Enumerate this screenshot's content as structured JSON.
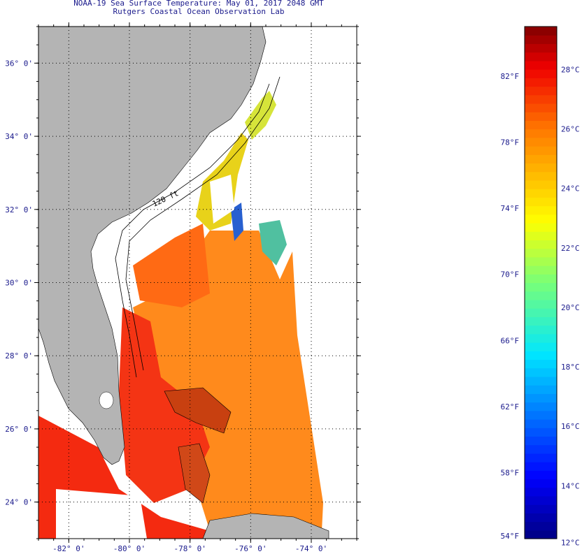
{
  "title": {
    "line1": "NOAA-19 Sea Surface Temperature:  May 01, 2017 2048 GMT",
    "line2": "Rutgers Coastal Ocean Observation Lab"
  },
  "map": {
    "lat_range": [
      23.0,
      37.0
    ],
    "lon_range": [
      -83.0,
      -72.5
    ],
    "lat_ticks": [
      {
        "value": 36,
        "label": "36° 0'"
      },
      {
        "value": 34,
        "label": "34° 0'"
      },
      {
        "value": 32,
        "label": "32° 0'"
      },
      {
        "value": 30,
        "label": "30° 0'"
      },
      {
        "value": 28,
        "label": "28° 0'"
      },
      {
        "value": 26,
        "label": "26° 0'"
      },
      {
        "value": 24,
        "label": "24° 0'"
      }
    ],
    "lon_ticks": [
      {
        "value": -82,
        "label": "-82° 0'"
      },
      {
        "value": -80,
        "label": "-80° 0'"
      },
      {
        "value": -78,
        "label": "-78° 0'"
      },
      {
        "value": -76,
        "label": "-76° 0'"
      },
      {
        "value": -74,
        "label": "-74° 0'"
      }
    ],
    "contour_label": "120 ft",
    "grid": "dotted",
    "land_color": "#b4b4b4"
  },
  "colorbar": {
    "min_f": 54,
    "max_f": 85,
    "f_ticks": [
      {
        "value": 82,
        "label": "82°F"
      },
      {
        "value": 78,
        "label": "78°F"
      },
      {
        "value": 74,
        "label": "74°F"
      },
      {
        "value": 70,
        "label": "70°F"
      },
      {
        "value": 66,
        "label": "66°F"
      },
      {
        "value": 62,
        "label": "62°F"
      },
      {
        "value": 58,
        "label": "58°F"
      },
      {
        "value": 54,
        "label": "54°F"
      }
    ],
    "c_ticks": [
      {
        "value": 28,
        "label": "28°C"
      },
      {
        "value": 26,
        "label": "26°C"
      },
      {
        "value": 24,
        "label": "24°C"
      },
      {
        "value": 22,
        "label": "22°C"
      },
      {
        "value": 20,
        "label": "20°C"
      },
      {
        "value": 18,
        "label": "18°C"
      },
      {
        "value": 16,
        "label": "16°C"
      },
      {
        "value": 14,
        "label": "14°C"
      },
      {
        "value": 12,
        "label": "12°C"
      }
    ]
  }
}
